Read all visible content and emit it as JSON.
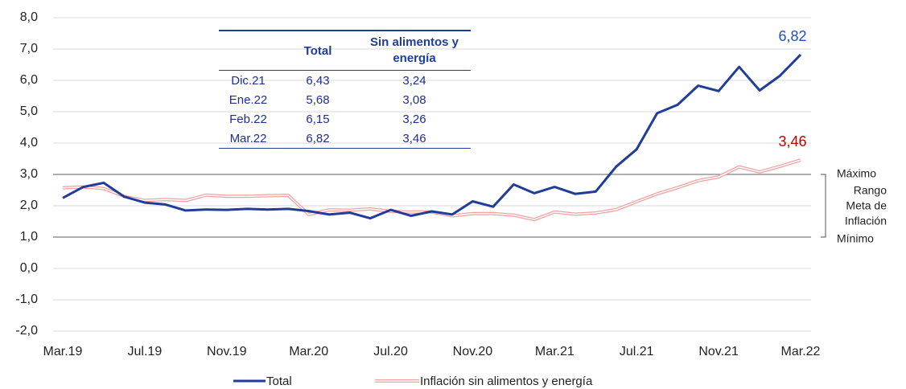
{
  "chart_data": {
    "type": "line",
    "categories": [
      "Mar.19",
      null,
      null,
      null,
      "Jul.19",
      null,
      null,
      null,
      "Nov.19",
      null,
      null,
      null,
      "Mar.20",
      null,
      null,
      null,
      "Jul.20",
      null,
      null,
      null,
      "Nov.20",
      null,
      null,
      null,
      "Mar.21",
      null,
      null,
      null,
      "Jul.21",
      null,
      null,
      null,
      "Nov.21",
      null,
      null,
      null,
      "Mar.22"
    ],
    "series": [
      {
        "name": "Total",
        "color": "#1f3d99",
        "values": [
          2.25,
          2.6,
          2.73,
          2.29,
          2.1,
          2.04,
          1.85,
          1.88,
          1.87,
          1.9,
          1.88,
          1.9,
          1.83,
          1.72,
          1.78,
          1.6,
          1.87,
          1.68,
          1.82,
          1.72,
          2.14,
          1.97,
          2.68,
          2.4,
          2.6,
          2.38,
          2.45,
          3.25,
          3.8,
          4.95,
          5.22,
          5.83,
          5.66,
          6.43,
          5.68,
          6.15,
          6.82
        ],
        "value_labels": [
          null,
          null,
          null,
          null,
          null,
          null,
          null,
          null,
          null,
          null,
          null,
          null,
          null,
          null,
          null,
          null,
          null,
          null,
          null,
          null,
          null,
          null,
          null,
          null,
          null,
          null,
          null,
          null,
          null,
          null,
          null,
          null,
          null,
          null,
          null,
          null,
          "6,82"
        ],
        "label_color": "#1f4fc4"
      },
      {
        "name": "Inflación sin alimentos y energía",
        "color": "#f2a0a0",
        "values": [
          2.57,
          2.6,
          2.55,
          2.3,
          2.17,
          2.2,
          2.17,
          2.34,
          2.3,
          2.3,
          2.32,
          2.33,
          1.72,
          1.87,
          1.86,
          1.9,
          1.82,
          1.8,
          1.8,
          1.68,
          1.75,
          1.75,
          1.7,
          1.56,
          1.8,
          1.73,
          1.77,
          1.88,
          2.13,
          2.38,
          2.58,
          2.8,
          2.92,
          3.24,
          3.08,
          3.26,
          3.46
        ],
        "value_labels": [
          null,
          null,
          null,
          null,
          null,
          null,
          null,
          null,
          null,
          null,
          null,
          null,
          null,
          null,
          null,
          null,
          null,
          null,
          null,
          null,
          null,
          null,
          null,
          null,
          null,
          null,
          null,
          null,
          null,
          null,
          null,
          null,
          null,
          null,
          null,
          null,
          "3,46"
        ],
        "label_color": "#c00000"
      }
    ],
    "ylim": [
      -2,
      8
    ],
    "yticks": [
      {
        "value": -2,
        "label": "-2,0"
      },
      {
        "value": -1,
        "label": "-1,0"
      },
      {
        "value": 0,
        "label": "0,0"
      },
      {
        "value": 1,
        "label": "1,0"
      },
      {
        "value": 2,
        "label": "2,0"
      },
      {
        "value": 3,
        "label": "3,0"
      },
      {
        "value": 4,
        "label": "4,0"
      },
      {
        "value": 5,
        "label": "5,0"
      },
      {
        "value": 6,
        "label": "6,0"
      },
      {
        "value": 7,
        "label": "7,0"
      },
      {
        "value": 8,
        "label": "8,0"
      }
    ],
    "grid": true,
    "target_range": {
      "min": 1,
      "max": 3,
      "max_label": "Máximo",
      "label": [
        "Rango",
        "Meta de",
        "Inflación"
      ],
      "min_label": "Mínimo"
    },
    "table": {
      "headers": [
        "Total",
        "Sin alimentos y energía"
      ],
      "rows": [
        [
          "Dic.21",
          "6,43",
          "3,24"
        ],
        [
          "Ene.22",
          "5,68",
          "3,08"
        ],
        [
          "Feb.22",
          "6,15",
          "3,26"
        ],
        [
          "Mar.22",
          "6,82",
          "3,46"
        ]
      ]
    }
  }
}
